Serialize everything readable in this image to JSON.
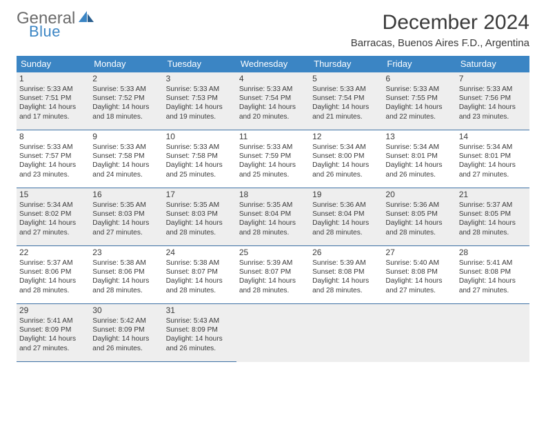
{
  "logo": {
    "text1": "General",
    "text2": "Blue"
  },
  "title": "December 2024",
  "location": "Barracas, Buenos Aires F.D., Argentina",
  "colors": {
    "accent": "#3b85c4",
    "header_text": "#ffffff",
    "body_text": "#3a3a3a",
    "alt_row_bg": "#eeeeee",
    "rule": "#3b6fa3"
  },
  "weekdays": [
    "Sunday",
    "Monday",
    "Tuesday",
    "Wednesday",
    "Thursday",
    "Friday",
    "Saturday"
  ],
  "days": [
    {
      "n": "1",
      "sr": "5:33 AM",
      "ss": "7:51 PM",
      "dl": "14 hours",
      "dm": "and 17 minutes."
    },
    {
      "n": "2",
      "sr": "5:33 AM",
      "ss": "7:52 PM",
      "dl": "14 hours",
      "dm": "and 18 minutes."
    },
    {
      "n": "3",
      "sr": "5:33 AM",
      "ss": "7:53 PM",
      "dl": "14 hours",
      "dm": "and 19 minutes."
    },
    {
      "n": "4",
      "sr": "5:33 AM",
      "ss": "7:54 PM",
      "dl": "14 hours",
      "dm": "and 20 minutes."
    },
    {
      "n": "5",
      "sr": "5:33 AM",
      "ss": "7:54 PM",
      "dl": "14 hours",
      "dm": "and 21 minutes."
    },
    {
      "n": "6",
      "sr": "5:33 AM",
      "ss": "7:55 PM",
      "dl": "14 hours",
      "dm": "and 22 minutes."
    },
    {
      "n": "7",
      "sr": "5:33 AM",
      "ss": "7:56 PM",
      "dl": "14 hours",
      "dm": "and 23 minutes."
    },
    {
      "n": "8",
      "sr": "5:33 AM",
      "ss": "7:57 PM",
      "dl": "14 hours",
      "dm": "and 23 minutes."
    },
    {
      "n": "9",
      "sr": "5:33 AM",
      "ss": "7:58 PM",
      "dl": "14 hours",
      "dm": "and 24 minutes."
    },
    {
      "n": "10",
      "sr": "5:33 AM",
      "ss": "7:58 PM",
      "dl": "14 hours",
      "dm": "and 25 minutes."
    },
    {
      "n": "11",
      "sr": "5:33 AM",
      "ss": "7:59 PM",
      "dl": "14 hours",
      "dm": "and 25 minutes."
    },
    {
      "n": "12",
      "sr": "5:34 AM",
      "ss": "8:00 PM",
      "dl": "14 hours",
      "dm": "and 26 minutes."
    },
    {
      "n": "13",
      "sr": "5:34 AM",
      "ss": "8:01 PM",
      "dl": "14 hours",
      "dm": "and 26 minutes."
    },
    {
      "n": "14",
      "sr": "5:34 AM",
      "ss": "8:01 PM",
      "dl": "14 hours",
      "dm": "and 27 minutes."
    },
    {
      "n": "15",
      "sr": "5:34 AM",
      "ss": "8:02 PM",
      "dl": "14 hours",
      "dm": "and 27 minutes."
    },
    {
      "n": "16",
      "sr": "5:35 AM",
      "ss": "8:03 PM",
      "dl": "14 hours",
      "dm": "and 27 minutes."
    },
    {
      "n": "17",
      "sr": "5:35 AM",
      "ss": "8:03 PM",
      "dl": "14 hours",
      "dm": "and 28 minutes."
    },
    {
      "n": "18",
      "sr": "5:35 AM",
      "ss": "8:04 PM",
      "dl": "14 hours",
      "dm": "and 28 minutes."
    },
    {
      "n": "19",
      "sr": "5:36 AM",
      "ss": "8:04 PM",
      "dl": "14 hours",
      "dm": "and 28 minutes."
    },
    {
      "n": "20",
      "sr": "5:36 AM",
      "ss": "8:05 PM",
      "dl": "14 hours",
      "dm": "and 28 minutes."
    },
    {
      "n": "21",
      "sr": "5:37 AM",
      "ss": "8:05 PM",
      "dl": "14 hours",
      "dm": "and 28 minutes."
    },
    {
      "n": "22",
      "sr": "5:37 AM",
      "ss": "8:06 PM",
      "dl": "14 hours",
      "dm": "and 28 minutes."
    },
    {
      "n": "23",
      "sr": "5:38 AM",
      "ss": "8:06 PM",
      "dl": "14 hours",
      "dm": "and 28 minutes."
    },
    {
      "n": "24",
      "sr": "5:38 AM",
      "ss": "8:07 PM",
      "dl": "14 hours",
      "dm": "and 28 minutes."
    },
    {
      "n": "25",
      "sr": "5:39 AM",
      "ss": "8:07 PM",
      "dl": "14 hours",
      "dm": "and 28 minutes."
    },
    {
      "n": "26",
      "sr": "5:39 AM",
      "ss": "8:08 PM",
      "dl": "14 hours",
      "dm": "and 28 minutes."
    },
    {
      "n": "27",
      "sr": "5:40 AM",
      "ss": "8:08 PM",
      "dl": "14 hours",
      "dm": "and 27 minutes."
    },
    {
      "n": "28",
      "sr": "5:41 AM",
      "ss": "8:08 PM",
      "dl": "14 hours",
      "dm": "and 27 minutes."
    },
    {
      "n": "29",
      "sr": "5:41 AM",
      "ss": "8:09 PM",
      "dl": "14 hours",
      "dm": "and 27 minutes."
    },
    {
      "n": "30",
      "sr": "5:42 AM",
      "ss": "8:09 PM",
      "dl": "14 hours",
      "dm": "and 26 minutes."
    },
    {
      "n": "31",
      "sr": "5:43 AM",
      "ss": "8:09 PM",
      "dl": "14 hours",
      "dm": "and 26 minutes."
    }
  ],
  "labels": {
    "sunrise": "Sunrise:",
    "sunset": "Sunset:",
    "daylight": "Daylight:"
  }
}
